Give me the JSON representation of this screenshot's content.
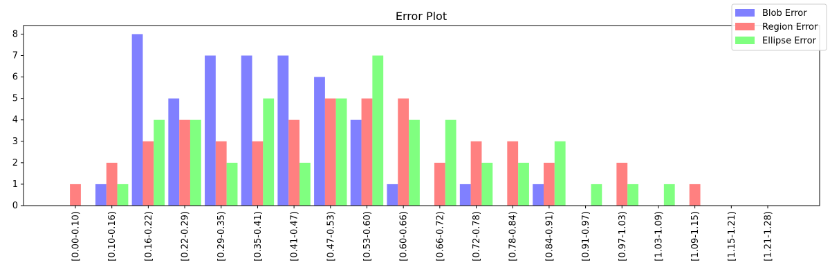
{
  "chart_data": {
    "type": "bar",
    "title": "Error Plot",
    "xlabel": "",
    "ylabel": "",
    "ylim": [
      0,
      8.4
    ],
    "yticks": [
      0,
      1,
      2,
      3,
      4,
      5,
      6,
      7,
      8
    ],
    "grid": false,
    "legend_position": "top-right",
    "categories": [
      "[0.00-0.10)",
      "[0.10-0.16)",
      "[0.16-0.22)",
      "[0.22-0.29)",
      "[0.29-0.35)",
      "[0.35-0.41)",
      "[0.41-0.47)",
      "[0.47-0.53)",
      "[0.53-0.60)",
      "[0.60-0.66)",
      "[0.66-0.72)",
      "[0.72-0.78)",
      "[0.78-0.84)",
      "[0.84-0.91)",
      "[0.91-0.97)",
      "[0.97-1.03)",
      "[1.03-1.09)",
      "[1.09-1.15)",
      "[1.15-1.21)",
      "[1.21-1.28)"
    ],
    "series": [
      {
        "name": "Blob Error",
        "color": "#8080ff",
        "values": [
          0,
          1,
          8,
          5,
          7,
          7,
          7,
          6,
          4,
          1,
          0,
          1,
          0,
          1,
          0,
          0,
          0,
          0,
          0,
          0
        ]
      },
      {
        "name": "Region Error",
        "color": "#ff8080",
        "values": [
          1,
          2,
          3,
          4,
          3,
          3,
          4,
          5,
          5,
          5,
          2,
          3,
          3,
          2,
          0,
          2,
          0,
          1,
          0,
          0
        ]
      },
      {
        "name": "Ellipse Error",
        "color": "#80ff80",
        "values": [
          0,
          1,
          4,
          4,
          2,
          5,
          2,
          5,
          7,
          4,
          4,
          2,
          2,
          3,
          1,
          1,
          1,
          0,
          0,
          0
        ]
      }
    ]
  }
}
